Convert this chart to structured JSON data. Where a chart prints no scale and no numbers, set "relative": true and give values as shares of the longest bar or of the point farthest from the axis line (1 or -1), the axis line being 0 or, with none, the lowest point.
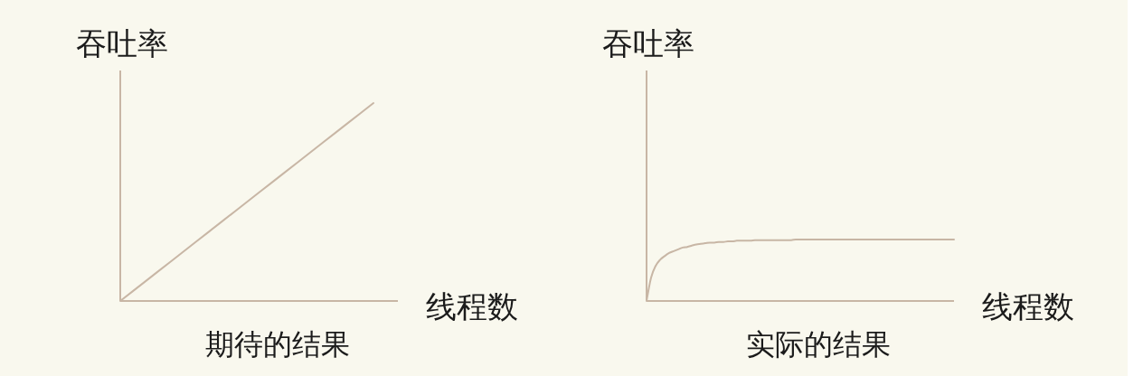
{
  "chart_data": [
    {
      "type": "line",
      "title": "期待的结果",
      "xlabel": "线程数",
      "ylabel": "吞吐率",
      "relative": true,
      "categories": [
        null,
        null,
        null,
        null,
        null,
        null,
        null,
        null,
        null,
        null,
        null
      ],
      "series": [
        {
          "color": "#c8b6a5",
          "values": [
            0,
            0.1,
            0.2,
            0.3,
            0.4,
            0.5,
            0.6,
            0.7,
            0.8,
            0.9,
            1
          ]
        }
      ]
    },
    {
      "type": "line",
      "title": "实际的结果",
      "xlabel": "线程数",
      "ylabel": "吞吐率",
      "relative": true,
      "categories": [
        null,
        null,
        null,
        null,
        null,
        null,
        null,
        null,
        null,
        null,
        null,
        null,
        null,
        null,
        null,
        null,
        null,
        null,
        null,
        null,
        null,
        null,
        null,
        null,
        null,
        null,
        null,
        null,
        null,
        null,
        null,
        null,
        null,
        null,
        null,
        null,
        null,
        null,
        null,
        null,
        null,
        null,
        null,
        null,
        null,
        null,
        null,
        null,
        null,
        null,
        null,
        null,
        null,
        null,
        null,
        null,
        null,
        null,
        null,
        null,
        null,
        null,
        null,
        null,
        null,
        null,
        null,
        null,
        null
      ],
      "series": [
        {
          "color": "#c8b6a5",
          "values": [
            0,
            0.38,
            0.57,
            0.67,
            0.73,
            0.78,
            0.81,
            0.84,
            0.87,
            0.88,
            0.9,
            0.92,
            0.93,
            0.94,
            0.95,
            0.95,
            0.96,
            0.96,
            0.97,
            0.97,
            0.98,
            0.98,
            0.98,
            0.98,
            0.99,
            0.99,
            0.99,
            0.99,
            0.99,
            0.99,
            0.99,
            0.99,
            0.99,
            1,
            1,
            1,
            1,
            1,
            1,
            1,
            1,
            1,
            1,
            1,
            1,
            1,
            1,
            1,
            1,
            1,
            1,
            1,
            1,
            1,
            1,
            1,
            1,
            1,
            1,
            1,
            1,
            1,
            1,
            1,
            1,
            1,
            1,
            1,
            1
          ]
        }
      ]
    }
  ]
}
